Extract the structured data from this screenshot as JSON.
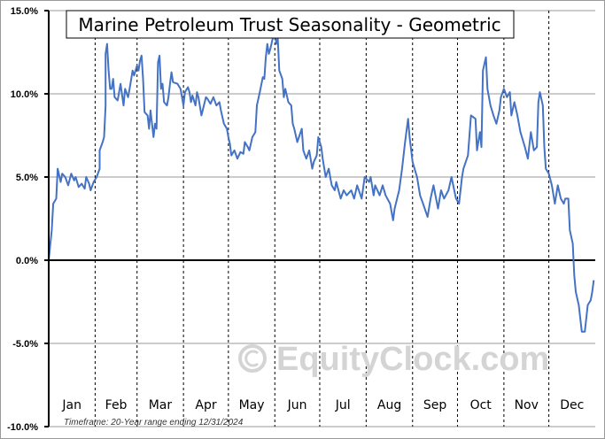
{
  "chart_data": {
    "type": "line",
    "title": "Marine Petroleum Trust Seasonality - Geometric",
    "footnote": "Timeframe: 20-Year range ending 12/31/2024",
    "watermark": "EquityClock.com",
    "xlabel": "",
    "ylabel": "",
    "ylim": [
      -10,
      15
    ],
    "xlim": [
      0,
      365
    ],
    "y_ticks": [
      15,
      10,
      5,
      0,
      -5,
      -10
    ],
    "y_tick_labels": [
      "15.0%",
      "10.0%",
      "5.0%",
      "0.0%",
      "-5.0%",
      "-10.0%"
    ],
    "months": [
      "Jan",
      "Feb",
      "Mar",
      "Apr",
      "May",
      "Jun",
      "Jul",
      "Aug",
      "Sep",
      "Oct",
      "Nov",
      "Dec"
    ],
    "month_starts": [
      0,
      31,
      59,
      90,
      120,
      151,
      181,
      212,
      243,
      273,
      304,
      334
    ],
    "line_color": "#4472c4",
    "series": [
      {
        "name": "Marine Petroleum Trust",
        "x": [
          0,
          2,
          3,
          5,
          6,
          8,
          9,
          11,
          13,
          15,
          17,
          18,
          20,
          22,
          24,
          25,
          27,
          28,
          30,
          32,
          34,
          34,
          36,
          37,
          38,
          38,
          39,
          40,
          41,
          42,
          43,
          44,
          46,
          48,
          50,
          51,
          53,
          54,
          56,
          57,
          59,
          60,
          61,
          62,
          63,
          64,
          66,
          67,
          68,
          69,
          70,
          71,
          72,
          73,
          74,
          75,
          76,
          77,
          79,
          80,
          81,
          82,
          83,
          86,
          88,
          90,
          91,
          93,
          94,
          95,
          96,
          98,
          99,
          100,
          102,
          105,
          106,
          108,
          110,
          112,
          114,
          115,
          117,
          119,
          120,
          121,
          122,
          124,
          126,
          128,
          130,
          131,
          133,
          134,
          136,
          138,
          139,
          141,
          143,
          144,
          145,
          146,
          147,
          148,
          150,
          151,
          152,
          153,
          154,
          156,
          157,
          158,
          160,
          162,
          163,
          164,
          166,
          169,
          170,
          172,
          174,
          176,
          177,
          179,
          180,
          182,
          183,
          185,
          187,
          189,
          191,
          192,
          195,
          197,
          199,
          202,
          204,
          206,
          209,
          211,
          214,
          215,
          217,
          218,
          221,
          223,
          225,
          228,
          230,
          231,
          234,
          236,
          238,
          240,
          241,
          243,
          246,
          248,
          250,
          253,
          255,
          257,
          260,
          262,
          264,
          267,
          269,
          272,
          274,
          276,
          277,
          280,
          282,
          285,
          286,
          288,
          289,
          290,
          292,
          293,
          295,
          297,
          299,
          301,
          302,
          304,
          306,
          308,
          309,
          311,
          313,
          315,
          318,
          320,
          322,
          324,
          326,
          327,
          328,
          330,
          331,
          332,
          334,
          336,
          338,
          340,
          342,
          344,
          345,
          347,
          348,
          350,
          351,
          352,
          354,
          356,
          358,
          360,
          362,
          363,
          364
        ],
        "values": [
          0,
          1.8,
          3.4,
          3.7,
          5.5,
          4.7,
          5.2,
          5.0,
          4.5,
          5.2,
          4.8,
          5.0,
          4.4,
          4.6,
          4.3,
          5.0,
          4.6,
          4.2,
          4.7,
          5.0,
          5.5,
          6.6,
          7.1,
          7.4,
          9.3,
          12.4,
          13.0,
          11.4,
          10.3,
          10.3,
          10.9,
          9.8,
          9.6,
          10.6,
          9.3,
          10.3,
          9.8,
          10.3,
          11.4,
          11.1,
          11.7,
          11.4,
          12.0,
          12.3,
          10.9,
          8.9,
          8.7,
          7.9,
          9.0,
          8.2,
          7.4,
          8.2,
          7.9,
          11.9,
          12.3,
          10.3,
          10.6,
          9.5,
          9.3,
          9.8,
          10.6,
          11.3,
          10.7,
          10.6,
          10.3,
          9.3,
          10.1,
          10.4,
          10.1,
          9.5,
          9.9,
          9.3,
          10.1,
          9.8,
          8.7,
          9.8,
          9.7,
          9.4,
          9.8,
          9.3,
          9.5,
          9.0,
          8.2,
          7.9,
          7.4,
          7.0,
          6.3,
          6.6,
          6.1,
          6.5,
          6.4,
          7.1,
          6.8,
          6.6,
          7.4,
          7.7,
          9.3,
          10.1,
          11.0,
          10.9,
          12.2,
          13.0,
          12.4,
          12.7,
          13.5,
          13.8,
          13.0,
          13.3,
          11.4,
          10.9,
          9.8,
          10.3,
          9.5,
          9.3,
          8.2,
          7.9,
          7.1,
          7.9,
          6.6,
          6.1,
          6.6,
          5.5,
          5.9,
          6.3,
          7.4,
          6.8,
          6.1,
          5.0,
          5.5,
          4.5,
          4.2,
          4.7,
          3.7,
          4.2,
          3.9,
          4.2,
          3.7,
          4.5,
          3.7,
          5.0,
          4.7,
          5.0,
          3.9,
          4.5,
          3.9,
          4.5,
          3.9,
          3.4,
          2.4,
          3.1,
          4.2,
          5.5,
          7.1,
          8.5,
          7.4,
          5.9,
          5.0,
          3.9,
          3.4,
          2.6,
          3.7,
          4.5,
          3.1,
          4.2,
          3.7,
          4.2,
          5.0,
          3.7,
          3.4,
          5.0,
          5.5,
          6.3,
          8.7,
          8.5,
          6.6,
          7.7,
          6.8,
          11.4,
          12.2,
          10.3,
          9.3,
          8.7,
          8.2,
          9.0,
          9.8,
          10.3,
          9.8,
          10.1,
          8.7,
          9.5,
          8.7,
          7.7,
          6.8,
          6.1,
          7.7,
          6.6,
          6.8,
          9.5,
          10.1,
          9.3,
          6.8,
          5.5,
          5.2,
          4.5,
          3.4,
          4.5,
          3.7,
          3.4,
          3.7,
          3.7,
          1.8,
          1.0,
          -0.9,
          -1.9,
          -2.7,
          -4.3,
          -4.3,
          -2.7,
          -2.4,
          -1.9,
          -1.2
        ]
      }
    ],
    "grid": true,
    "legend": "none"
  }
}
